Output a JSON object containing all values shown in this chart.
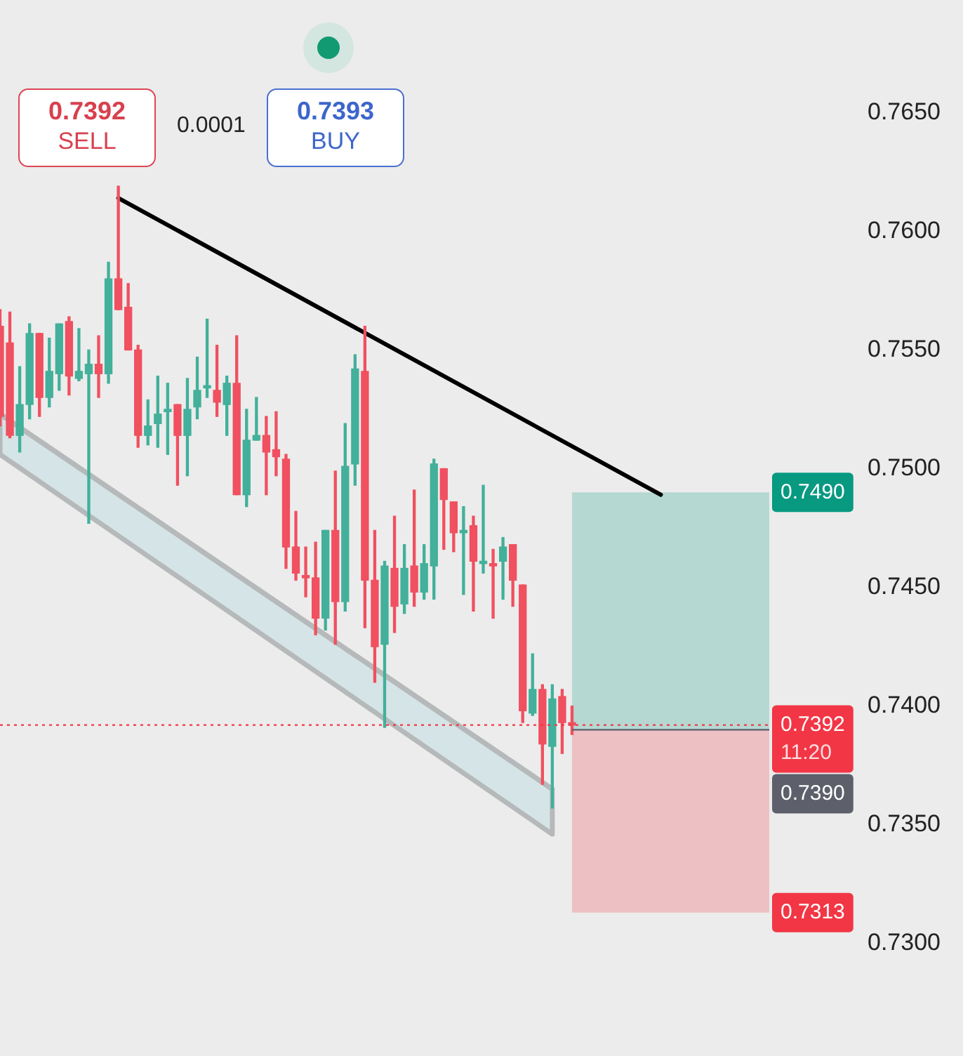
{
  "chart_data": {
    "type": "candlestick",
    "categories": [
      null,
      null,
      null,
      null,
      null,
      null,
      null,
      null,
      null,
      null,
      null,
      null,
      null,
      null,
      null,
      null,
      null,
      null,
      null,
      null,
      null,
      null,
      null,
      null,
      null,
      null,
      null,
      null,
      null,
      null,
      null,
      null,
      null,
      null,
      null,
      null,
      null,
      null,
      null,
      null,
      null,
      null,
      null,
      null,
      null,
      null,
      null,
      null,
      null,
      null,
      null,
      null,
      null,
      null,
      null,
      null,
      null,
      null,
      null,
      null,
      null,
      null,
      null,
      null,
      null,
      null,
      null,
      null,
      null,
      null,
      null,
      null,
      null,
      null,
      null,
      null,
      null,
      null,
      null
    ],
    "ohlc": [
      [
        0.756,
        0.7567,
        0.7518,
        0.7522
      ],
      [
        0.7553,
        0.7566,
        0.7513,
        0.7514
      ],
      [
        0.7514,
        0.7543,
        0.7507,
        0.7527
      ],
      [
        0.7527,
        0.7561,
        0.7521,
        0.7557
      ],
      [
        0.7557,
        0.7557,
        0.7522,
        0.753
      ],
      [
        0.753,
        0.7555,
        0.7526,
        0.7541
      ],
      [
        0.754,
        0.7561,
        0.7533,
        0.7561
      ],
      [
        0.7562,
        0.7564,
        0.7531,
        0.7539
      ],
      [
        0.7538,
        0.7559,
        0.7537,
        0.7541
      ],
      [
        0.754,
        0.755,
        0.7477,
        0.7544
      ],
      [
        0.7544,
        0.7556,
        0.753,
        0.754
      ],
      [
        0.754,
        0.7587,
        0.7536,
        0.758
      ],
      [
        0.758,
        0.7619,
        0.7567,
        0.7567
      ],
      [
        0.7568,
        0.7578,
        0.755,
        0.755
      ],
      [
        0.755,
        0.7552,
        0.7509,
        0.7514
      ],
      [
        0.7514,
        0.7529,
        0.751,
        0.7518
      ],
      [
        0.7519,
        0.7539,
        0.7509,
        0.7523
      ],
      [
        0.7524,
        0.7536,
        0.7506,
        0.7525
      ],
      [
        0.7527,
        0.7527,
        0.7493,
        0.7514
      ],
      [
        0.7514,
        0.7538,
        0.7497,
        0.7525
      ],
      [
        0.7526,
        0.7547,
        0.7521,
        0.7533
      ],
      [
        0.7534,
        0.7563,
        0.753,
        0.7535
      ],
      [
        0.7533,
        0.7552,
        0.7522,
        0.7528
      ],
      [
        0.7527,
        0.7539,
        0.7514,
        0.7536
      ],
      [
        0.7536,
        0.7556,
        0.7489,
        0.7489
      ],
      [
        0.7489,
        0.7525,
        0.7484,
        0.7512
      ],
      [
        0.7512,
        0.753,
        0.7512,
        0.7514
      ],
      [
        0.7514,
        0.7522,
        0.7489,
        0.7507
      ],
      [
        0.7508,
        0.7524,
        0.7497,
        0.7505
      ],
      [
        0.7504,
        0.7506,
        0.7458,
        0.7467
      ],
      [
        0.7467,
        0.7482,
        0.7453,
        0.7456
      ],
      [
        0.7455,
        0.7467,
        0.7446,
        0.7454
      ],
      [
        0.7454,
        0.7469,
        0.743,
        0.7437
      ],
      [
        0.7437,
        0.7474,
        0.7432,
        0.7474
      ],
      [
        0.7474,
        0.7499,
        0.7426,
        0.7444
      ],
      [
        0.7444,
        0.7519,
        0.744,
        0.7501
      ],
      [
        0.7502,
        0.7548,
        0.7493,
        0.7542
      ],
      [
        0.7541,
        0.756,
        0.7433,
        0.7453
      ],
      [
        0.7453,
        0.7474,
        0.741,
        0.7425
      ],
      [
        0.7426,
        0.7461,
        0.7391,
        0.7459
      ],
      [
        0.7458,
        0.748,
        0.7431,
        0.7442
      ],
      [
        0.7443,
        0.7468,
        0.7439,
        0.7458
      ],
      [
        0.7459,
        0.7491,
        0.7442,
        0.7448
      ],
      [
        0.7448,
        0.7468,
        0.7445,
        0.746
      ],
      [
        0.7459,
        0.7504,
        0.7445,
        0.7502
      ],
      [
        0.75,
        0.75,
        0.7466,
        0.7487
      ],
      [
        0.7486,
        0.7486,
        0.7465,
        0.7473
      ],
      [
        0.7473,
        0.7484,
        0.7447,
        0.7474
      ],
      [
        0.7476,
        0.748,
        0.744,
        0.7461
      ],
      [
        0.746,
        0.7493,
        0.7456,
        0.7461
      ],
      [
        0.746,
        0.7466,
        0.7437,
        0.7459
      ],
      [
        0.7461,
        0.7471,
        0.7445,
        0.7467
      ],
      [
        0.7468,
        0.7468,
        0.7442,
        0.7453
      ],
      [
        0.7451,
        0.7451,
        0.7393,
        0.7398
      ],
      [
        0.7397,
        0.7422,
        0.7396,
        0.7407
      ],
      [
        0.7407,
        0.7409,
        0.7367,
        0.7384
      ],
      [
        0.7383,
        0.7409,
        0.7357,
        0.7403
      ],
      [
        0.7404,
        0.7407,
        0.738,
        0.7393
      ],
      [
        0.7393,
        0.74,
        0.7388,
        0.7392
      ],
      null,
      null,
      null,
      null,
      null,
      null,
      null,
      null,
      null,
      null,
      null,
      null,
      null,
      null,
      null,
      null,
      null,
      null,
      null,
      null
    ],
    "colors": [
      "#f0505f",
      "#f0505f",
      "#42b09a",
      "#42b09a",
      "#f0505f",
      "#42b09a",
      "#42b09a",
      "#f0505f",
      "#42b09a",
      "#42b09a",
      "#f0505f",
      "#42b09a",
      "#f0505f",
      "#f0505f",
      "#f0505f",
      "#42b09a",
      "#42b09a",
      "#42b09a",
      "#f0505f",
      "#42b09a",
      "#42b09a",
      "#42b09a",
      "#f0505f",
      "#42b09a",
      "#f0505f",
      "#42b09a",
      "#42b09a",
      "#f0505f",
      "#f0505f",
      "#f0505f",
      "#f0505f",
      "#f0505f",
      "#f0505f",
      "#42b09a",
      "#f0505f",
      "#42b09a",
      "#42b09a",
      "#f0505f",
      "#f0505f",
      "#42b09a",
      "#f0505f",
      "#42b09a",
      "#f0505f",
      "#42b09a",
      "#42b09a",
      "#f0505f",
      "#f0505f",
      "#42b09a",
      "#f0505f",
      "#42b09a",
      "#f0505f",
      "#42b09a",
      "#f0505f",
      "#f0505f",
      "#42b09a",
      "#f0505f",
      "#42b09a",
      "#f0505f",
      "#f0505f",
      null,
      null,
      null,
      null,
      null,
      null,
      null,
      null,
      null,
      null,
      null,
      null,
      null,
      null,
      null,
      null,
      null,
      null,
      null,
      null
    ],
    "series": [
      {
        "type": "line",
        "color": "#000000",
        "values": [
          null,
          null,
          null,
          null,
          null,
          null,
          null,
          null,
          null,
          null,
          null,
          null,
          0.7614,
          null,
          null,
          null,
          null,
          null,
          null,
          null,
          null,
          null,
          null,
          null,
          null,
          null,
          null,
          null,
          null,
          null,
          null,
          null,
          null,
          null,
          null,
          null,
          null,
          null,
          null,
          null,
          null,
          null,
          null,
          null,
          null,
          null,
          null,
          null,
          null,
          null,
          null,
          null,
          null,
          null,
          null,
          null,
          null,
          null,
          null,
          null,
          null,
          null,
          null,
          null,
          null,
          null,
          null,
          0.7489,
          null,
          null,
          null,
          null,
          null,
          null,
          null,
          null,
          null,
          null,
          null
        ]
      },
      {
        "type": "line",
        "color": "#b6b9ba",
        "values": [
          0.7523,
          null,
          null,
          null,
          null,
          null,
          null,
          null,
          null,
          null,
          null,
          null,
          null,
          null,
          null,
          null,
          null,
          null,
          null,
          null,
          null,
          null,
          null,
          null,
          null,
          null,
          null,
          null,
          null,
          null,
          null,
          null,
          null,
          null,
          null,
          null,
          null,
          null,
          null,
          null,
          null,
          null,
          null,
          null,
          null,
          null,
          null,
          null,
          null,
          null,
          null,
          null,
          null,
          null,
          null,
          null,
          0.7365,
          null,
          null,
          null,
          null,
          null,
          null,
          null,
          null,
          null,
          null,
          null,
          null,
          null,
          null,
          null,
          null,
          null,
          null,
          null,
          null,
          null,
          null
        ],
        "upper": [
          0.7523,
          null,
          null,
          null,
          null,
          null,
          null,
          null,
          null,
          null,
          null,
          null,
          null,
          null,
          null,
          null,
          null,
          null,
          null,
          null,
          null,
          null,
          null,
          null,
          null,
          null,
          null,
          null,
          null,
          null,
          null,
          null,
          null,
          null,
          null,
          null,
          null,
          null,
          null,
          null,
          null,
          null,
          null,
          null,
          null,
          null,
          null,
          null,
          null,
          null,
          null,
          null,
          null,
          null,
          null,
          null,
          0.7365,
          null,
          null,
          null,
          null,
          null,
          null,
          null,
          null,
          null,
          null,
          null,
          null,
          null,
          null,
          null,
          null,
          null,
          null,
          null,
          null,
          null,
          null
        ],
        "lower": [
          0.7506,
          null,
          null,
          null,
          null,
          null,
          null,
          null,
          null,
          null,
          null,
          null,
          null,
          null,
          null,
          null,
          null,
          null,
          null,
          null,
          null,
          null,
          null,
          null,
          null,
          null,
          null,
          null,
          null,
          null,
          null,
          null,
          null,
          null,
          null,
          null,
          null,
          null,
          null,
          null,
          null,
          null,
          null,
          null,
          null,
          null,
          null,
          null,
          null,
          null,
          null,
          null,
          null,
          null,
          null,
          null,
          0.7346,
          null,
          null,
          null,
          null,
          null,
          null,
          null,
          null,
          null,
          null,
          null,
          null,
          null,
          null,
          null,
          null,
          null,
          null,
          null,
          null,
          null,
          null
        ]
      }
    ],
    "ylim": [
      0.73,
      0.765
    ],
    "yticks": [
      {
        "value": 0.73,
        "label": "0.7300"
      },
      {
        "value": 0.735,
        "label": "0.7350"
      },
      {
        "value": 0.74,
        "label": "0.7400"
      },
      {
        "value": 0.745,
        "label": "0.7450"
      },
      {
        "value": 0.75,
        "label": "0.7500"
      },
      {
        "value": 0.755,
        "label": "0.7550"
      },
      {
        "value": 0.76,
        "label": "0.7600"
      },
      {
        "value": 0.765,
        "label": "0.7650"
      }
    ],
    "tick_labels": "y",
    "grid": false,
    "legend": false,
    "bands": [
      {
        "axis": "y",
        "from": 0.739,
        "to": 0.749,
        "label": "0.7490",
        "color": "#089981"
      },
      {
        "axis": "y",
        "from": 0.7313,
        "to": 0.739,
        "label": "0.7313",
        "color": "#f23645"
      }
    ],
    "ref_lines": [
      {
        "axis": "y",
        "value": 0.7392,
        "label": "0.7392\n11:20",
        "color": "#f23645",
        "line_style": "dotted"
      },
      {
        "axis": "y",
        "value": 0.739,
        "label": "0.7390",
        "color": "#5d606b"
      }
    ],
    "annotations": [
      "0.7392\nSELL",
      "0.0001",
      "0.7393\nBUY"
    ]
  }
}
